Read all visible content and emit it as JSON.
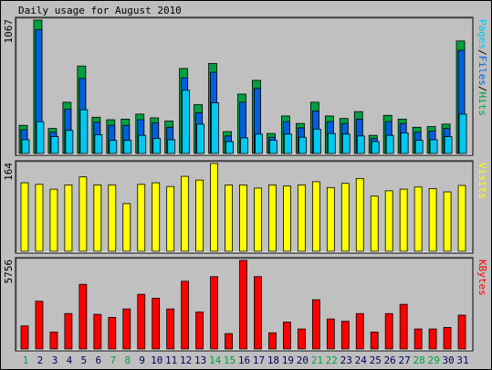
{
  "title": "Daily usage for August 2010",
  "colors": {
    "background": "#bfbfbf",
    "panel": "#c0c0c0",
    "hits": "#00a040",
    "files": "#0060e0",
    "pages": "#00c8f0",
    "visits": "#ffff00",
    "kbytes": "#ff0000",
    "weekend_day": "#00a040",
    "weekday_day": "#000060"
  },
  "chart_data": [
    {
      "type": "bar",
      "panel": "hits-files-pages",
      "ylabel_parts": [
        {
          "text": "Pages",
          "color": "#00c8f0"
        },
        {
          "text": "/",
          "color": "#000000"
        },
        {
          "text": "Files",
          "color": "#0060e0"
        },
        {
          "text": "/",
          "color": "#000000"
        },
        {
          "text": "Hits",
          "color": "#00a040"
        }
      ],
      "ymax_label": "1067",
      "ymax": 1067,
      "categories": [
        "1",
        "2",
        "3",
        "4",
        "5",
        "6",
        "7",
        "8",
        "9",
        "10",
        "11",
        "12",
        "13",
        "14",
        "15",
        "16",
        "17",
        "18",
        "19",
        "20",
        "21",
        "22",
        "23",
        "24",
        "25",
        "26",
        "27",
        "28",
        "29",
        "30",
        "31"
      ],
      "series": [
        {
          "name": "Hits",
          "values": [
            225,
            1067,
            200,
            410,
            700,
            290,
            270,
            275,
            315,
            285,
            260,
            680,
            390,
            720,
            175,
            475,
            585,
            160,
            300,
            240,
            410,
            300,
            280,
            335,
            145,
            305,
            275,
            210,
            215,
            235,
            900
          ]
        },
        {
          "name": "Files",
          "values": [
            190,
            990,
            170,
            355,
            600,
            250,
            225,
            225,
            270,
            245,
            210,
            605,
            325,
            650,
            140,
            410,
            520,
            130,
            255,
            205,
            340,
            255,
            240,
            275,
            120,
            255,
            240,
            170,
            180,
            200,
            825
          ]
        },
        {
          "name": "Pages",
          "values": [
            110,
            255,
            135,
            185,
            350,
            150,
            105,
            105,
            145,
            120,
            110,
            505,
            235,
            405,
            95,
            125,
            155,
            105,
            155,
            130,
            195,
            160,
            155,
            140,
            95,
            145,
            165,
            105,
            110,
            135,
            315
          ]
        }
      ]
    },
    {
      "type": "bar",
      "panel": "visits",
      "ylabel_parts": [
        {
          "text": "Visits",
          "color": "#ffff00"
        }
      ],
      "ymax_label": "164",
      "ymax": 164,
      "categories": [
        "1",
        "2",
        "3",
        "4",
        "5",
        "6",
        "7",
        "8",
        "9",
        "10",
        "11",
        "12",
        "13",
        "14",
        "15",
        "16",
        "17",
        "18",
        "19",
        "20",
        "21",
        "22",
        "23",
        "24",
        "25",
        "26",
        "27",
        "28",
        "29",
        "30",
        "31"
      ],
      "series": [
        {
          "name": "Visits",
          "values": [
            128,
            125,
            116,
            124,
            139,
            124,
            124,
            89,
            125,
            128,
            121,
            140,
            133,
            164,
            124,
            124,
            118,
            124,
            122,
            124,
            130,
            119,
            127,
            136,
            103,
            113,
            116,
            120,
            117,
            111,
            123
          ]
        }
      ]
    },
    {
      "type": "bar",
      "panel": "kbytes",
      "ylabel_parts": [
        {
          "text": "KBytes",
          "color": "#ff0000"
        }
      ],
      "ymax_label": "5756",
      "ymax": 5756,
      "categories": [
        "1",
        "2",
        "3",
        "4",
        "5",
        "6",
        "7",
        "8",
        "9",
        "10",
        "11",
        "12",
        "13",
        "14",
        "15",
        "16",
        "17",
        "18",
        "19",
        "20",
        "21",
        "22",
        "23",
        "24",
        "25",
        "26",
        "27",
        "28",
        "29",
        "30",
        "31"
      ],
      "series": [
        {
          "name": "KBytes",
          "values": [
            1500,
            3100,
            1100,
            2300,
            4200,
            2250,
            2050,
            2600,
            3550,
            3300,
            2600,
            4400,
            2400,
            4700,
            1000,
            5756,
            4700,
            1050,
            1750,
            1300,
            3200,
            1950,
            1800,
            2300,
            1100,
            2300,
            2900,
            1300,
            1300,
            1400,
            2200
          ]
        }
      ]
    }
  ],
  "days": [
    {
      "label": "1",
      "weekend": true
    },
    {
      "label": "2",
      "weekend": false
    },
    {
      "label": "3",
      "weekend": false
    },
    {
      "label": "4",
      "weekend": false
    },
    {
      "label": "5",
      "weekend": false
    },
    {
      "label": "6",
      "weekend": false
    },
    {
      "label": "7",
      "weekend": true
    },
    {
      "label": "8",
      "weekend": true
    },
    {
      "label": "9",
      "weekend": false
    },
    {
      "label": "10",
      "weekend": false
    },
    {
      "label": "11",
      "weekend": false
    },
    {
      "label": "12",
      "weekend": false
    },
    {
      "label": "13",
      "weekend": false
    },
    {
      "label": "14",
      "weekend": true
    },
    {
      "label": "15",
      "weekend": true
    },
    {
      "label": "16",
      "weekend": false
    },
    {
      "label": "17",
      "weekend": false
    },
    {
      "label": "18",
      "weekend": false
    },
    {
      "label": "19",
      "weekend": false
    },
    {
      "label": "20",
      "weekend": false
    },
    {
      "label": "21",
      "weekend": true
    },
    {
      "label": "22",
      "weekend": true
    },
    {
      "label": "23",
      "weekend": false
    },
    {
      "label": "24",
      "weekend": false
    },
    {
      "label": "25",
      "weekend": false
    },
    {
      "label": "26",
      "weekend": false
    },
    {
      "label": "27",
      "weekend": false
    },
    {
      "label": "28",
      "weekend": true
    },
    {
      "label": "29",
      "weekend": true
    },
    {
      "label": "30",
      "weekend": false
    },
    {
      "label": "31",
      "weekend": false
    }
  ]
}
